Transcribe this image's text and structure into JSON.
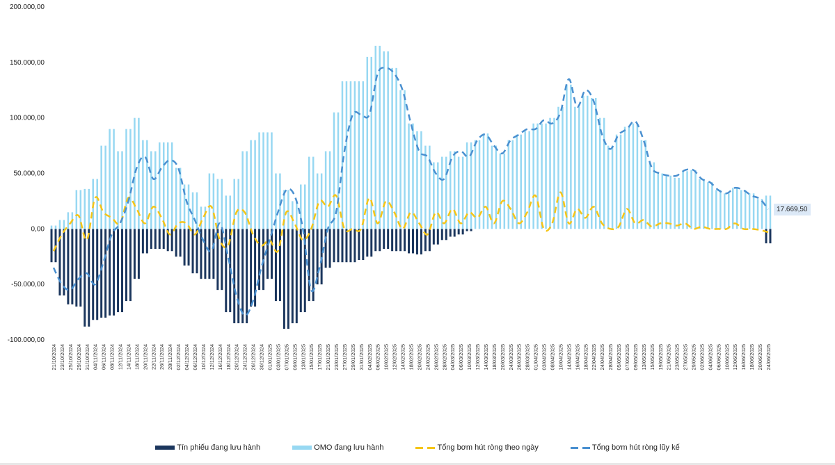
{
  "chart_data": {
    "type": "bar",
    "title": "",
    "xlabel": "",
    "ylabel": "",
    "ylim": [
      -100000,
      200000
    ],
    "yticks": [
      "200.000,00",
      "150.000,00",
      "100.000,00",
      "50.000,00",
      "0,00",
      "-50.000,00",
      "-100.000,00"
    ],
    "ytick_values": [
      200000,
      150000,
      100000,
      50000,
      0,
      -50000,
      -100000
    ],
    "grid": false,
    "legend_position": "bottom",
    "categories": [
      "21/10/2024",
      "23/10/2024",
      "25/10/2024",
      "29/10/2024",
      "31/10/2024",
      "04/11/2024",
      "06/11/2024",
      "08/11/2024",
      "12/11/2024",
      "14/11/2024",
      "18/11/2024",
      "20/11/2024",
      "22/11/2024",
      "26/11/2024",
      "28/11/2024",
      "02/12/2024",
      "04/12/2024",
      "06/12/2024",
      "10/12/2024",
      "12/12/2024",
      "16/12/2024",
      "18/12/2024",
      "20/12/2024",
      "24/12/2024",
      "26/12/2024",
      "30/12/2024",
      "01/01/2025",
      "03/01/2025",
      "07/01/2025",
      "09/01/2025",
      "13/01/2025",
      "15/01/2025",
      "17/01/2025",
      "21/01/2025",
      "23/01/2025",
      "27/01/2025",
      "29/01/2025",
      "31/01/2025",
      "04/02/2025",
      "06/02/2025",
      "10/02/2025",
      "12/02/2025",
      "14/02/2025",
      "18/02/2025",
      "20/02/2025",
      "24/02/2025",
      "26/02/2025",
      "28/02/2025",
      "04/03/2025",
      "06/03/2025",
      "10/03/2025",
      "12/03/2025",
      "14/03/2025",
      "18/03/2025",
      "20/03/2025",
      "24/03/2025",
      "26/03/2025",
      "28/03/2025",
      "01/04/2025",
      "03/04/2025",
      "08/04/2025",
      "10/04/2025",
      "14/04/2025",
      "16/04/2025",
      "18/04/2025",
      "22/04/2025",
      "24/04/2025",
      "28/04/2025",
      "05/05/2025",
      "07/05/2025",
      "09/05/2025",
      "13/05/2025",
      "15/05/2025",
      "19/05/2025",
      "21/05/2025",
      "23/05/2025",
      "27/05/2025",
      "29/05/2025",
      "02/06/2025",
      "04/06/2025",
      "06/06/2025",
      "10/06/2025",
      "12/06/2025",
      "16/06/2025",
      "18/06/2025",
      "20/06/2025",
      "24/06/2025"
    ],
    "series": [
      {
        "name": "Tín phiếu đang lưu hành",
        "kind": "bar",
        "color": "#1b365d",
        "values": [
          -30000,
          -60000,
          -68000,
          -70000,
          -88000,
          -82000,
          -80000,
          -78000,
          -75000,
          -65000,
          -45000,
          -22000,
          -18000,
          -18000,
          -20000,
          -25000,
          -33000,
          -40000,
          -45000,
          -45000,
          -55000,
          -75000,
          -85000,
          -85000,
          -70000,
          -55000,
          -45000,
          -65000,
          -90000,
          -85000,
          -75000,
          -65000,
          -50000,
          -35000,
          -30000,
          -30000,
          -30000,
          -28000,
          -25000,
          -20000,
          -18000,
          -20000,
          -20000,
          -22000,
          -23000,
          -20000,
          -14000,
          -10000,
          -7000,
          -5000,
          -2000,
          0,
          0,
          0,
          0,
          0,
          0,
          0,
          0,
          0,
          0,
          0,
          0,
          0,
          0,
          0,
          0,
          0,
          0,
          0,
          0,
          0,
          0,
          0,
          0,
          0,
          0,
          0,
          0,
          0,
          0,
          0,
          0,
          0,
          0,
          0,
          -13000
        ]
      },
      {
        "name": "OMO đang lưu hành",
        "kind": "bar",
        "color": "#97d8f2",
        "values": [
          3000,
          8000,
          15000,
          35000,
          36000,
          45000,
          75000,
          90000,
          70000,
          90000,
          100000,
          80000,
          70000,
          78000,
          78000,
          55000,
          40000,
          33000,
          20000,
          50000,
          45000,
          30000,
          45000,
          70000,
          80000,
          87000,
          87000,
          50000,
          35000,
          25000,
          40000,
          65000,
          50000,
          70000,
          105000,
          133000,
          133000,
          133000,
          155000,
          165000,
          160000,
          145000,
          125000,
          95000,
          88000,
          75000,
          60000,
          65000,
          70000,
          65000,
          78000,
          80000,
          86000,
          75000,
          68000,
          80000,
          85000,
          88000,
          95000,
          95000,
          100000,
          110000,
          130000,
          110000,
          120000,
          118000,
          100000,
          75000,
          85000,
          92000,
          95000,
          80000,
          60000,
          50000,
          48000,
          46000,
          52000,
          53000,
          45000,
          42000,
          35000,
          32000,
          37000,
          35000,
          32000,
          27000,
          30000
        ]
      },
      {
        "name": "Tổng bơm hút ròng theo ngày",
        "kind": "line",
        "color": "#f5c518",
        "values": [
          -20000,
          -5000,
          5000,
          12000,
          -10000,
          28000,
          15000,
          10000,
          5000,
          28000,
          18000,
          5000,
          20000,
          10000,
          -5000,
          5000,
          5000,
          -5000,
          10000,
          20000,
          -10000,
          -15000,
          15000,
          15000,
          -5000,
          -15000,
          -10000,
          -20000,
          15000,
          5000,
          -10000,
          0,
          25000,
          20000,
          30000,
          0,
          0,
          0,
          28000,
          5000,
          25000,
          15000,
          0,
          15000,
          5000,
          -5000,
          15000,
          5000,
          18000,
          5000,
          15000,
          10000,
          20000,
          5000,
          25000,
          18000,
          5000,
          15000,
          30000,
          0,
          5000,
          33000,
          5000,
          18000,
          10000,
          20000,
          5000,
          0,
          2000,
          18000,
          5000,
          8000,
          2000,
          5000,
          5000,
          3000,
          5000,
          0,
          2000,
          0,
          0,
          0,
          5000,
          0,
          0,
          -1000,
          -3000
        ]
      },
      {
        "name": "Tổng bơm hút ròng lũy kế",
        "kind": "line",
        "color": "#4a90d0",
        "values": [
          -35000,
          -50000,
          -55000,
          -45000,
          -40000,
          -50000,
          -30000,
          -5000,
          5000,
          25000,
          55000,
          65000,
          45000,
          55000,
          62000,
          55000,
          25000,
          8000,
          -10000,
          -20000,
          5000,
          -25000,
          -60000,
          -78000,
          -65000,
          -35000,
          -10000,
          15000,
          35000,
          30000,
          0,
          -55000,
          -35000,
          0,
          15000,
          70000,
          103000,
          103000,
          103000,
          140000,
          145000,
          140000,
          125000,
          95000,
          70000,
          65000,
          50000,
          45000,
          65000,
          70000,
          65000,
          80000,
          85000,
          75000,
          68000,
          80000,
          85000,
          90000,
          90000,
          98000,
          95000,
          105000,
          135000,
          110000,
          125000,
          115000,
          85000,
          72000,
          85000,
          90000,
          97000,
          80000,
          55000,
          50000,
          48000,
          48000,
          53000,
          53000,
          45000,
          42000,
          35000,
          32000,
          37000,
          35000,
          30000,
          27000,
          17669.5
        ]
      }
    ],
    "annotations": [
      {
        "text": "17.669,50",
        "series": "Tổng bơm hút ròng lũy kế",
        "category": "24/06/2025"
      }
    ]
  }
}
